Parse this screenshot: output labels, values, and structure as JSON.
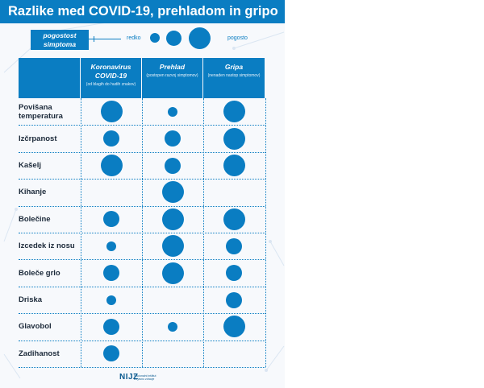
{
  "title": "Razlike med COVID-19, prehladom in gripo",
  "legend": {
    "label": "pogostost simptoma",
    "low": "redko",
    "high": "pogosto"
  },
  "columns": [
    {
      "title": "Koronavirus COVID-19",
      "note": "(od blagih do hudih znakov)"
    },
    {
      "title": "Prehlad",
      "note": "(postopen razvoj simptomov)"
    },
    {
      "title": "Gripa",
      "note": "(nenaden nastop simptomov)"
    }
  ],
  "rows": [
    {
      "label": "Povišana temperatura",
      "levels": [
        3,
        1,
        3
      ]
    },
    {
      "label": "Izčrpanost",
      "levels": [
        2,
        2,
        3
      ]
    },
    {
      "label": "Kašelj",
      "levels": [
        3,
        2,
        3
      ]
    },
    {
      "label": "Kihanje",
      "levels": [
        0,
        3,
        0
      ]
    },
    {
      "label": "Bolečine",
      "levels": [
        2,
        3,
        3
      ]
    },
    {
      "label": "Izcedek iz nosu",
      "levels": [
        1,
        3,
        2
      ]
    },
    {
      "label": "Boleče grlo",
      "levels": [
        2,
        3,
        2
      ]
    },
    {
      "label": "Driska",
      "levels": [
        1,
        0,
        2
      ]
    },
    {
      "label": "Glavobol",
      "levels": [
        2,
        1,
        3
      ]
    },
    {
      "label": "Zadihanost",
      "levels": [
        2,
        0,
        0
      ]
    }
  ],
  "footer": {
    "logo": "NIJZ",
    "sub": "Nacionalni inštitut za javno zdravje"
  },
  "colors": {
    "accent": "#0a7dc2",
    "background": "#f7f9fc"
  }
}
